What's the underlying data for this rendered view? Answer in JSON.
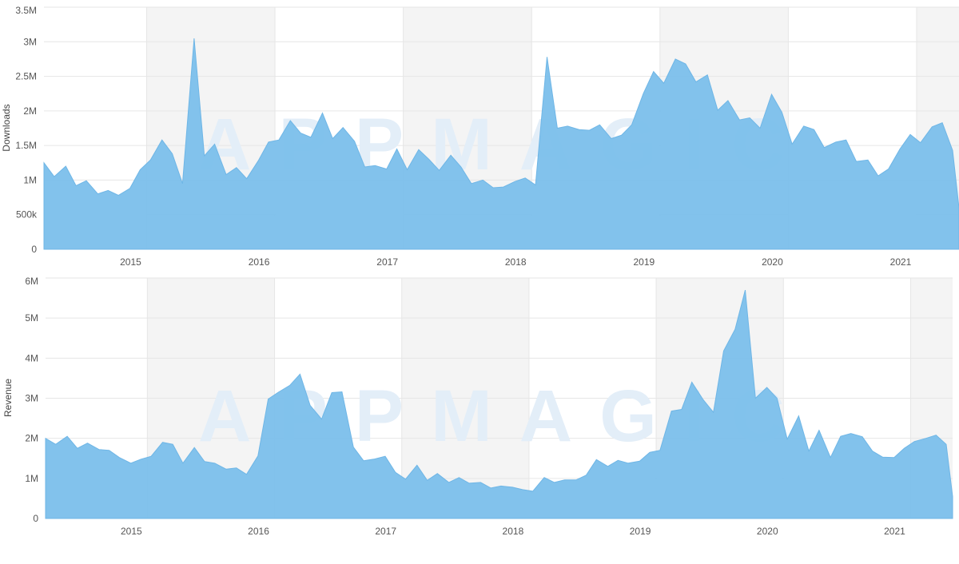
{
  "watermark": "APPMAGIC",
  "colors": {
    "area": "#7bbfeb",
    "stroke": "#6fb6e6",
    "band": "#f4f4f4",
    "grid": "#e6e6e6"
  },
  "chart_data": [
    {
      "type": "area",
      "ylabel": "Downloads",
      "ylim": [
        0,
        3500000
      ],
      "yticks": [
        {
          "value": 0,
          "label": "0"
        },
        {
          "value": 500000,
          "label": "500k"
        },
        {
          "value": 1000000,
          "label": "1M"
        },
        {
          "value": 1500000,
          "label": "1.5M"
        },
        {
          "value": 2000000,
          "label": "2M"
        },
        {
          "value": 2500000,
          "label": "2.5M"
        },
        {
          "value": 3000000,
          "label": "3M"
        },
        {
          "value": 3500000,
          "label": "3.5M"
        }
      ],
      "x_start": 2014.2,
      "x_end": 2021.33,
      "xticks": [
        "2015",
        "2016",
        "2017",
        "2018",
        "2019",
        "2020",
        "2021"
      ],
      "shaded_years": [
        "2015",
        "2017",
        "2019",
        "2021"
      ],
      "series": [
        {
          "x": [
            2014.2,
            2014.28,
            2014.37,
            2014.45,
            2014.53,
            2014.62,
            2014.7,
            2014.78,
            2014.87,
            2014.95,
            2015.03,
            2015.12,
            2015.2,
            2015.28,
            2015.37,
            2015.45,
            2015.53,
            2015.62,
            2015.7,
            2015.78,
            2015.87,
            2015.95,
            2016.03,
            2016.12,
            2016.2,
            2016.28,
            2016.37,
            2016.45,
            2016.53,
            2016.62,
            2016.7,
            2016.78,
            2016.87,
            2016.95,
            2017.03,
            2017.12,
            2017.2,
            2017.28,
            2017.37,
            2017.45,
            2017.53,
            2017.62,
            2017.7,
            2017.78,
            2017.87,
            2017.95,
            2018.03,
            2018.12,
            2018.2,
            2018.28,
            2018.37,
            2018.45,
            2018.53,
            2018.62,
            2018.7,
            2018.78,
            2018.87,
            2018.95,
            2019.03,
            2019.12,
            2019.2,
            2019.28,
            2019.37,
            2019.45,
            2019.53,
            2019.62,
            2019.7,
            2019.78,
            2019.87,
            2019.95,
            2020.03,
            2020.12,
            2020.2,
            2020.28,
            2020.37,
            2020.45,
            2020.53,
            2020.62,
            2020.7,
            2020.78,
            2020.87,
            2020.95,
            2021.03,
            2021.12,
            2021.2,
            2021.28,
            2021.33
          ],
          "values": [
            1250000,
            1050000,
            1200000,
            920000,
            990000,
            800000,
            850000,
            780000,
            880000,
            1150000,
            1290000,
            1580000,
            1380000,
            950000,
            3050000,
            1350000,
            1520000,
            1080000,
            1180000,
            1020000,
            1280000,
            1550000,
            1580000,
            1860000,
            1680000,
            1620000,
            1970000,
            1600000,
            1760000,
            1560000,
            1190000,
            1210000,
            1160000,
            1450000,
            1150000,
            1440000,
            1300000,
            1140000,
            1360000,
            1190000,
            950000,
            1000000,
            890000,
            900000,
            980000,
            1030000,
            930000,
            2780000,
            1750000,
            1780000,
            1730000,
            1720000,
            1800000,
            1600000,
            1650000,
            1800000,
            2250000,
            2570000,
            2400000,
            2750000,
            2680000,
            2420000,
            2520000,
            2010000,
            2150000,
            1870000,
            1900000,
            1750000,
            2240000,
            1980000,
            1520000,
            1780000,
            1730000,
            1470000,
            1550000,
            1580000,
            1270000,
            1290000,
            1060000,
            1160000,
            1450000,
            1660000,
            1540000,
            1770000,
            1830000,
            1430000,
            600000
          ]
        }
      ]
    },
    {
      "type": "area",
      "ylabel": "Revenue",
      "ylim": [
        0,
        6000000
      ],
      "yticks": [
        {
          "value": 0,
          "label": "0"
        },
        {
          "value": 1000000,
          "label": "1M"
        },
        {
          "value": 2000000,
          "label": "2M"
        },
        {
          "value": 3000000,
          "label": "3M"
        },
        {
          "value": 4000000,
          "label": "4M"
        },
        {
          "value": 5000000,
          "label": "5M"
        },
        {
          "value": 6000000,
          "label": "6M"
        }
      ],
      "x_start": 2014.2,
      "x_end": 2021.33,
      "xticks": [
        "2015",
        "2016",
        "2017",
        "2018",
        "2019",
        "2020",
        "2021"
      ],
      "shaded_years": [
        "2015",
        "2017",
        "2019",
        "2021"
      ],
      "series": [
        {
          "x": [
            2014.2,
            2014.28,
            2014.37,
            2014.45,
            2014.53,
            2014.62,
            2014.7,
            2014.78,
            2014.87,
            2014.95,
            2015.03,
            2015.12,
            2015.2,
            2015.28,
            2015.37,
            2015.45,
            2015.53,
            2015.62,
            2015.7,
            2015.78,
            2015.87,
            2015.95,
            2016.03,
            2016.12,
            2016.2,
            2016.28,
            2016.37,
            2016.45,
            2016.53,
            2016.62,
            2016.7,
            2016.78,
            2016.87,
            2016.95,
            2017.03,
            2017.12,
            2017.2,
            2017.28,
            2017.37,
            2017.45,
            2017.53,
            2017.62,
            2017.7,
            2017.78,
            2017.87,
            2017.95,
            2018.03,
            2018.12,
            2018.2,
            2018.28,
            2018.37,
            2018.45,
            2018.53,
            2018.62,
            2018.7,
            2018.78,
            2018.87,
            2018.95,
            2019.03,
            2019.12,
            2019.2,
            2019.28,
            2019.37,
            2019.45,
            2019.53,
            2019.62,
            2019.7,
            2019.78,
            2019.87,
            2019.95,
            2020.03,
            2020.12,
            2020.2,
            2020.28,
            2020.37,
            2020.45,
            2020.53,
            2020.62,
            2020.7,
            2020.78,
            2020.87,
            2020.95,
            2021.03,
            2021.12,
            2021.2,
            2021.28,
            2021.33
          ],
          "values": [
            2000000,
            1850000,
            2050000,
            1750000,
            1880000,
            1720000,
            1700000,
            1520000,
            1380000,
            1480000,
            1550000,
            1900000,
            1850000,
            1380000,
            1770000,
            1420000,
            1380000,
            1230000,
            1260000,
            1100000,
            1560000,
            2980000,
            3150000,
            3320000,
            3600000,
            2820000,
            2480000,
            3140000,
            3160000,
            1780000,
            1440000,
            1480000,
            1550000,
            1150000,
            980000,
            1330000,
            950000,
            1120000,
            900000,
            1020000,
            880000,
            900000,
            760000,
            810000,
            780000,
            720000,
            680000,
            1020000,
            900000,
            960000,
            960000,
            1080000,
            1470000,
            1300000,
            1450000,
            1380000,
            1430000,
            1650000,
            1700000,
            2680000,
            2720000,
            3400000,
            2960000,
            2650000,
            4180000,
            4720000,
            5700000,
            3000000,
            3270000,
            3000000,
            1980000,
            2560000,
            1680000,
            2200000,
            1520000,
            2050000,
            2120000,
            2040000,
            1680000,
            1530000,
            1520000,
            1750000,
            1920000,
            2000000,
            2080000,
            1850000,
            550000
          ]
        }
      ]
    }
  ]
}
